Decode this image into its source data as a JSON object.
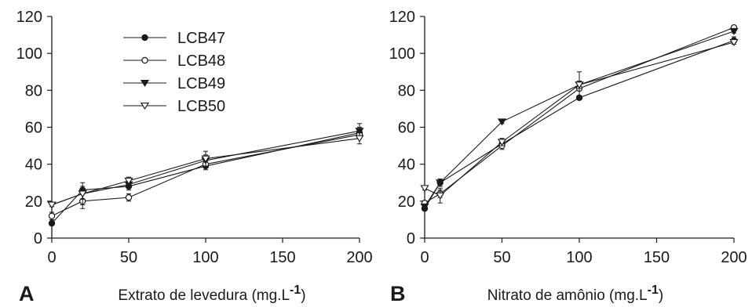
{
  "chart_data": [
    {
      "type": "line",
      "panel_letter": "A",
      "xlabel": "Extrato de levedura (mg.L",
      "xlabel_sup": "-1",
      "xlabel_close": ")",
      "xlim": [
        0,
        200
      ],
      "ylim": [
        0,
        120
      ],
      "xticks": [
        "0",
        "50",
        "100",
        "150",
        "200"
      ],
      "yticks": [
        "0",
        "20",
        "40",
        "60",
        "80",
        "100",
        "120"
      ],
      "x": [
        0,
        20,
        50,
        100,
        200
      ],
      "legend_position": "top-left",
      "series": [
        {
          "name": "LCB47",
          "marker": "filled-circle",
          "values": [
            8,
            26,
            28,
            39,
            57
          ],
          "err": [
            0,
            2,
            2,
            2,
            3
          ]
        },
        {
          "name": "LCB48",
          "marker": "open-circle",
          "values": [
            12,
            20,
            22,
            40,
            56
          ],
          "err": [
            2,
            4,
            2,
            2,
            2
          ]
        },
        {
          "name": "LCB49",
          "marker": "filled-triangle-down",
          "values": [
            18,
            24,
            29,
            42,
            58
          ],
          "err": [
            0,
            3,
            2,
            3,
            4
          ]
        },
        {
          "name": "LCB50",
          "marker": "open-triangle-down",
          "values": [
            18,
            24,
            31,
            43,
            54
          ],
          "err": [
            1,
            6,
            2,
            4,
            3
          ]
        }
      ]
    },
    {
      "type": "line",
      "panel_letter": "B",
      "xlabel": "Nitrato de amônio (mg.L",
      "xlabel_sup": "-1",
      "xlabel_close": ")",
      "xlim": [
        0,
        200
      ],
      "ylim": [
        0,
        120
      ],
      "xticks": [
        "0",
        "50",
        "100",
        "150",
        "200"
      ],
      "yticks": [
        "0",
        "20",
        "40",
        "60",
        "80",
        "100",
        "120"
      ],
      "x": [
        0,
        10,
        50,
        100,
        200
      ],
      "series": [
        {
          "name": "LCB47",
          "marker": "filled-circle",
          "values": [
            16,
            30,
            51,
            76,
            107
          ],
          "err": [
            0,
            2,
            2,
            1,
            2
          ]
        },
        {
          "name": "LCB48",
          "marker": "open-circle",
          "values": [
            19,
            24,
            50,
            81,
            114
          ],
          "err": [
            0,
            2,
            2,
            4,
            1
          ]
        },
        {
          "name": "LCB49",
          "marker": "filled-triangle-down",
          "values": [
            17,
            30,
            63,
            83,
            112
          ],
          "err": [
            0,
            2,
            1,
            2,
            1
          ]
        },
        {
          "name": "LCB50",
          "marker": "open-triangle-down",
          "values": [
            27,
            23,
            52,
            83,
            106
          ],
          "err": [
            1,
            4,
            2,
            7,
            1
          ]
        }
      ]
    }
  ]
}
